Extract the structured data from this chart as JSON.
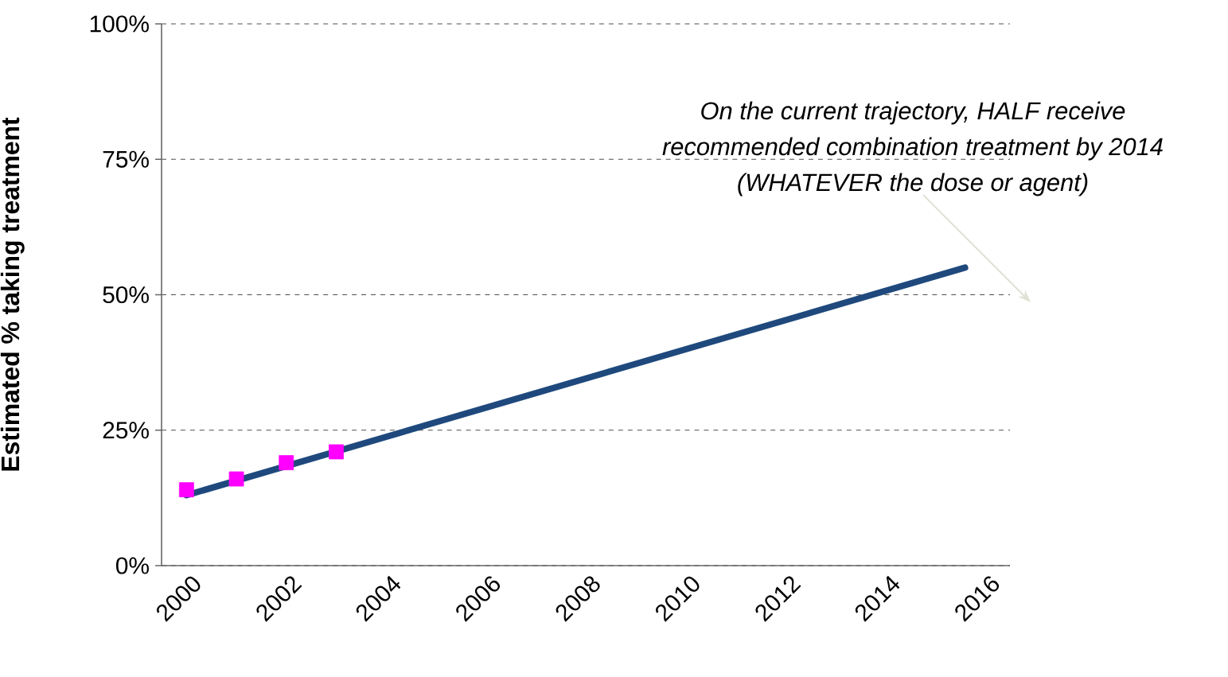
{
  "chart_data": {
    "type": "line",
    "ylabel": "Estimated % taking treatment",
    "annotations": [
      "On the current trajectory, HALF receive",
      "recommended combination treatment by 2014",
      "(WHATEVER the dose or agent)"
    ],
    "xlim": [
      1999.5,
      2016.5
    ],
    "xticks": [
      2000,
      2002,
      2004,
      2006,
      2008,
      2010,
      2012,
      2014,
      2016
    ],
    "ylim": [
      0,
      100
    ],
    "yticks": [
      {
        "value": 0,
        "label": "0%"
      },
      {
        "value": 25,
        "label": "25%"
      },
      {
        "value": 50,
        "label": "50%"
      },
      {
        "value": 75,
        "label": "75%"
      },
      {
        "value": 100,
        "label": "100%"
      }
    ],
    "grid": "y",
    "series": [
      {
        "type": "scatter",
        "color": "#ff00ff",
        "marker": "square",
        "x": [
          2000,
          2001,
          2002,
          2003
        ],
        "values": [
          14,
          16,
          19,
          21
        ]
      },
      {
        "color": "#1f497d",
        "marker": "none",
        "x": [
          2000,
          2015.6
        ],
        "values": [
          13,
          55
        ]
      }
    ]
  }
}
